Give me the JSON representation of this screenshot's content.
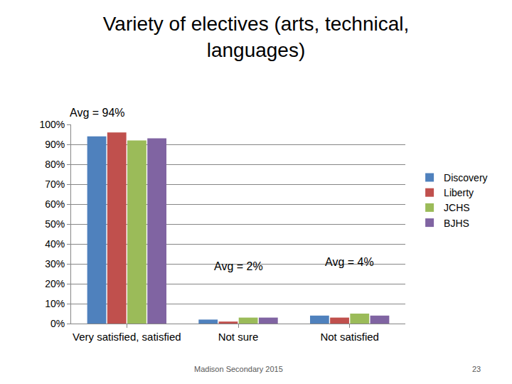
{
  "chart_data": {
    "type": "bar",
    "title": "Variety of electives (arts, technical, languages)",
    "categories": [
      "Very satisfied, satisfied",
      "Not sure",
      "Not satisfied"
    ],
    "series": [
      {
        "name": "Discovery",
        "color": "#4f81bd",
        "values": [
          94,
          2,
          4
        ]
      },
      {
        "name": "Liberty",
        "color": "#c0504d",
        "values": [
          96,
          1,
          3
        ]
      },
      {
        "name": "JCHS",
        "color": "#9bbb59",
        "values": [
          92,
          3,
          5
        ]
      },
      {
        "name": "BJHS",
        "color": "#8064a2",
        "values": [
          93,
          3,
          4
        ]
      }
    ],
    "ylim": [
      0,
      100
    ],
    "yticks": [
      {
        "value": 0,
        "label": "0%"
      },
      {
        "value": 10,
        "label": "10%"
      },
      {
        "value": 20,
        "label": "20%"
      },
      {
        "value": 30,
        "label": "30%"
      },
      {
        "value": 40,
        "label": "40%"
      },
      {
        "value": 50,
        "label": "50%"
      },
      {
        "value": 60,
        "label": "60%"
      },
      {
        "value": 70,
        "label": "70%"
      },
      {
        "value": 80,
        "label": "80%"
      },
      {
        "value": 90,
        "label": "90%"
      },
      {
        "value": 100,
        "label": "100%"
      }
    ],
    "grid": true,
    "legend": "right",
    "annotations": [
      {
        "text": "Avg = 94%",
        "category": "Very satisfied, satisfied"
      },
      {
        "text": "Avg = 2%",
        "category": "Not sure"
      },
      {
        "text": "Avg = 4%",
        "category": "Not satisfied"
      }
    ],
    "footer": "Madison Secondary 2015",
    "page_number": 23
  }
}
